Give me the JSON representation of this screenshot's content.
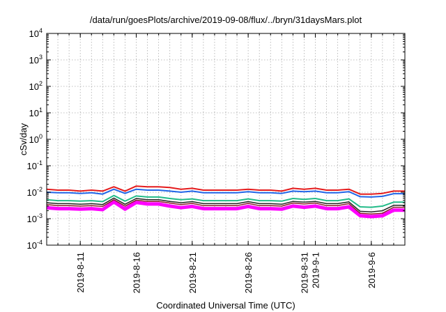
{
  "chart_data": {
    "type": "line",
    "title": "/data/run/goesPlots/archive/2019-09-08/flux/../bryn/31daysMars.plot",
    "xlabel": "Coordinated Universal Time (UTC)",
    "ylabel": "cSv/day",
    "yscale": "log",
    "ylim": [
      0.0001,
      10000
    ],
    "xlim": [
      "2019-08-08",
      "2019-09-09"
    ],
    "grid": true,
    "legend": "none",
    "y_ticks": [
      {
        "base": "10",
        "exp": "-4",
        "value": 0.0001
      },
      {
        "base": "10",
        "exp": "-3",
        "value": 0.001
      },
      {
        "base": "10",
        "exp": "-2",
        "value": 0.01
      },
      {
        "base": "10",
        "exp": "-1",
        "value": 0.1
      },
      {
        "base": "10",
        "exp": "0",
        "value": 1
      },
      {
        "base": "10",
        "exp": "1",
        "value": 10
      },
      {
        "base": "10",
        "exp": "2",
        "value": 100
      },
      {
        "base": "10",
        "exp": "3",
        "value": 1000
      },
      {
        "base": "10",
        "exp": "4",
        "value": 10000
      }
    ],
    "x_ticks": [
      {
        "date": "2019-08-11",
        "label": "2019-8-11"
      },
      {
        "date": "2019-08-16",
        "label": "2019-8-16"
      },
      {
        "date": "2019-08-21",
        "label": "2019-8-21"
      },
      {
        "date": "2019-08-26",
        "label": "2019-8-26"
      },
      {
        "date": "2019-08-31",
        "label": "2019-8-31"
      },
      {
        "date": "2019-09-01",
        "label": "2019-9-1"
      },
      {
        "date": "2019-09-06",
        "label": "2019-9-6"
      }
    ],
    "x_minor_dates": [
      "2019-08-09",
      "2019-08-10",
      "2019-08-11",
      "2019-08-12",
      "2019-08-13",
      "2019-08-14",
      "2019-08-15",
      "2019-08-16",
      "2019-08-17",
      "2019-08-18",
      "2019-08-19",
      "2019-08-20",
      "2019-08-21",
      "2019-08-22",
      "2019-08-23",
      "2019-08-24",
      "2019-08-25",
      "2019-08-26",
      "2019-08-27",
      "2019-08-28",
      "2019-08-29",
      "2019-08-30",
      "2019-08-31",
      "2019-09-01",
      "2019-09-02",
      "2019-09-03",
      "2019-09-04",
      "2019-09-05",
      "2019-09-06",
      "2019-09-07",
      "2019-09-08"
    ],
    "x": [
      "2019-08-08",
      "2019-08-09",
      "2019-08-10",
      "2019-08-11",
      "2019-08-12",
      "2019-08-13",
      "2019-08-14",
      "2019-08-15",
      "2019-08-16",
      "2019-08-17",
      "2019-08-18",
      "2019-08-19",
      "2019-08-20",
      "2019-08-21",
      "2019-08-22",
      "2019-08-23",
      "2019-08-24",
      "2019-08-25",
      "2019-08-26",
      "2019-08-27",
      "2019-08-28",
      "2019-08-29",
      "2019-08-30",
      "2019-08-31",
      "2019-09-01",
      "2019-09-02",
      "2019-09-03",
      "2019-09-04",
      "2019-09-05",
      "2019-09-06",
      "2019-09-07",
      "2019-09-08",
      "2019-09-09"
    ],
    "series": [
      {
        "color": "#e41a1c",
        "width": 2,
        "values": [
          0.013,
          0.012,
          0.012,
          0.011,
          0.012,
          0.011,
          0.016,
          0.011,
          0.017,
          0.016,
          0.016,
          0.015,
          0.013,
          0.014,
          0.012,
          0.012,
          0.012,
          0.012,
          0.013,
          0.012,
          0.012,
          0.011,
          0.014,
          0.013,
          0.014,
          0.012,
          0.012,
          0.013,
          0.0085,
          0.0085,
          0.009,
          0.011,
          0.011
        ]
      },
      {
        "color": "#2166e8",
        "width": 2,
        "values": [
          0.01,
          0.0095,
          0.0095,
          0.009,
          0.0095,
          0.0085,
          0.013,
          0.009,
          0.013,
          0.012,
          0.012,
          0.011,
          0.01,
          0.011,
          0.0095,
          0.0095,
          0.0095,
          0.0095,
          0.0105,
          0.0095,
          0.0095,
          0.009,
          0.011,
          0.0105,
          0.011,
          0.0095,
          0.0095,
          0.0105,
          0.0068,
          0.0066,
          0.007,
          0.0088,
          0.0088
        ]
      },
      {
        "color": "#22bb88",
        "width": 2,
        "values": [
          0.0052,
          0.0048,
          0.0048,
          0.0046,
          0.0048,
          0.0044,
          0.0075,
          0.0046,
          0.0072,
          0.0066,
          0.0066,
          0.0058,
          0.0052,
          0.0056,
          0.0048,
          0.0048,
          0.0048,
          0.0048,
          0.0056,
          0.0048,
          0.0048,
          0.0046,
          0.0058,
          0.0054,
          0.0058,
          0.0048,
          0.0048,
          0.0056,
          0.0028,
          0.0027,
          0.003,
          0.0042,
          0.0042
        ]
      },
      {
        "color": "#222222",
        "width": 1.5,
        "values": [
          0.004,
          0.0037,
          0.0037,
          0.0035,
          0.0037,
          0.0034,
          0.006,
          0.0035,
          0.0058,
          0.0052,
          0.0052,
          0.0045,
          0.004,
          0.0044,
          0.0037,
          0.0037,
          0.0037,
          0.0037,
          0.0044,
          0.0037,
          0.0037,
          0.0035,
          0.0045,
          0.0042,
          0.0045,
          0.0037,
          0.0037,
          0.0043,
          0.0019,
          0.0018,
          0.002,
          0.0032,
          0.0032
        ]
      },
      {
        "color": "#8b1a2b",
        "width": 1.5,
        "values": [
          0.0034,
          0.0031,
          0.0031,
          0.003,
          0.0031,
          0.0029,
          0.0052,
          0.003,
          0.005,
          0.0045,
          0.0045,
          0.0039,
          0.0034,
          0.0038,
          0.0031,
          0.0031,
          0.0031,
          0.0031,
          0.0038,
          0.0031,
          0.0031,
          0.003,
          0.0039,
          0.0036,
          0.0039,
          0.0031,
          0.0031,
          0.0037,
          0.0016,
          0.0015,
          0.0016,
          0.0027,
          0.0027
        ]
      },
      {
        "color": "#ff00ff",
        "width": 5,
        "values": [
          0.0026,
          0.0024,
          0.0024,
          0.0023,
          0.0024,
          0.0022,
          0.0043,
          0.0023,
          0.0041,
          0.0036,
          0.0036,
          0.003,
          0.0026,
          0.0029,
          0.0024,
          0.0024,
          0.0024,
          0.0024,
          0.0029,
          0.0024,
          0.0024,
          0.0023,
          0.003,
          0.0027,
          0.003,
          0.0024,
          0.0024,
          0.0028,
          0.0013,
          0.0012,
          0.0013,
          0.0021,
          0.0021
        ]
      }
    ]
  }
}
